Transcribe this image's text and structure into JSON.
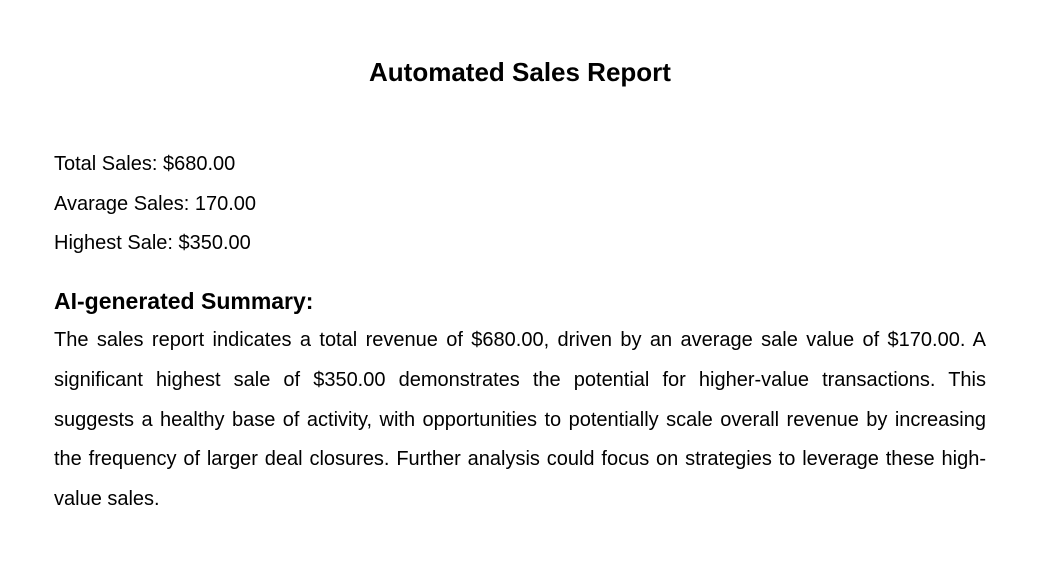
{
  "report": {
    "title": "Automated Sales Report",
    "stats": {
      "total_sales": "Total Sales: $680.00",
      "average_sales": "Avarage Sales: 170.00",
      "highest_sale": "Highest Sale: $350.00"
    },
    "summary": {
      "heading": "AI-generated Summary:",
      "text": "The sales report indicates a total revenue of $680.00, driven by an average sale value of $170.00. A significant highest sale of $350.00 demonstrates the potential for higher-value transactions. This suggests a healthy base of activity, with opportunities to potentially scale overall revenue by increasing the frequency of larger deal closures. Further analysis could focus on strategies to leverage these high-value sales."
    }
  }
}
